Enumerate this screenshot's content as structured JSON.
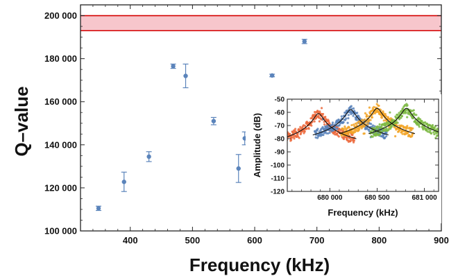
{
  "chart_data": [
    {
      "type": "scatter",
      "title": "",
      "xlabel": "Frequency (kHz)",
      "ylabel": "Q–value",
      "xlim": [
        320,
        900
      ],
      "ylim": [
        100000,
        205000
      ],
      "xticks": [
        400,
        500,
        600,
        700,
        800,
        900
      ],
      "xtick_labels": [
        "400",
        "500",
        "600",
        "700",
        "800",
        "900"
      ],
      "yticks": [
        100000,
        120000,
        140000,
        160000,
        180000,
        200000
      ],
      "ytick_labels": [
        "100 000",
        "120 000",
        "140 000",
        "160 000",
        "180 000",
        "200 000"
      ],
      "grid": false,
      "points": [
        {
          "x": 349,
          "y": 110500,
          "err": 1000
        },
        {
          "x": 390,
          "y": 122800,
          "err": 4500
        },
        {
          "x": 430,
          "y": 134500,
          "err": 2300
        },
        {
          "x": 469,
          "y": 176500,
          "err": 1000
        },
        {
          "x": 489,
          "y": 172000,
          "err": 5500
        },
        {
          "x": 534,
          "y": 151000,
          "err": 1700
        },
        {
          "x": 574,
          "y": 129000,
          "err": 6500
        },
        {
          "x": 584,
          "y": 143000,
          "err": 3000
        },
        {
          "x": 628,
          "y": 172200,
          "err": 600
        },
        {
          "x": 680,
          "y": 188000,
          "err": 1000
        }
      ],
      "band": {
        "y_low": 193000,
        "y_high": 200000
      },
      "colors": {
        "points": "#5b84bb",
        "band_fill": "#f7c6cc",
        "band_line": "#d40000"
      }
    },
    {
      "type": "line",
      "title": "",
      "xlabel": "Frequency (kHz)",
      "ylabel": "Amplitude (dB)",
      "xlim": [
        679.55,
        681.15
      ],
      "ylim": [
        -120,
        -50
      ],
      "xticks": [
        680.0,
        680.5,
        681.0
      ],
      "xtick_labels": [
        "680 000",
        "680 500",
        "681 000"
      ],
      "yticks": [
        -120,
        -110,
        -100,
        -90,
        -80,
        -70,
        -60,
        -50
      ],
      "ytick_labels": [
        "-120",
        "-110",
        "-100",
        "-90",
        "-80",
        "-70",
        "-60",
        "-50"
      ],
      "series": [
        {
          "center": 679.88,
          "peak": -61,
          "floor": -104,
          "color": "#ec6a3d"
        },
        {
          "center": 680.22,
          "peak": -58,
          "floor": -103,
          "color": "#5b84bb"
        },
        {
          "center": 680.5,
          "peak": -57,
          "floor": -102,
          "color": "#f2a428"
        },
        {
          "center": 680.81,
          "peak": -57,
          "floor": -102,
          "color": "#7cb843"
        }
      ],
      "fit_color": "#111111"
    }
  ]
}
